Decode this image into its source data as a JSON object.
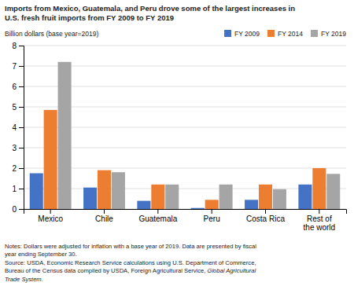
{
  "chart_data": {
    "type": "bar",
    "title": "Imports from Mexico, Guatemala, and Peru drove some of the largest increases in\nU.S. fresh fruit imports from FY 2009 to FY 2019",
    "ylabel": "Billion dollars (base year=2019)",
    "categories": [
      "Mexico",
      "Chile",
      "Guatemala",
      "Peru",
      "Costa Rica",
      "Rest of\nthe world"
    ],
    "series": [
      {
        "name": "FY 2009",
        "color": "#4472C4",
        "values": [
          1.75,
          1.05,
          0.4,
          0.05,
          0.45,
          1.2
        ]
      },
      {
        "name": "FY 2014",
        "color": "#ED7D31",
        "values": [
          4.85,
          1.9,
          1.2,
          0.45,
          1.2,
          2.0
        ]
      },
      {
        "name": "FY 2019",
        "color": "#A5A5A5",
        "values": [
          7.2,
          1.8,
          1.2,
          1.2,
          0.97,
          1.72
        ]
      }
    ],
    "ylim": [
      0,
      8
    ],
    "yticks": [
      0,
      1,
      2,
      3,
      4,
      5,
      6,
      7,
      8
    ],
    "grid": true,
    "legend": "upper right",
    "annotations": [
      "Notes: Dollars were adjusted for inflation with a base year of 2019. Data are presented by fiscal",
      "year ending September 30.",
      "Source: USDA, Economic Research Service calculations using U.S. Department of Commerce,",
      [
        "Bureau of the Census data compiled by USDA, Foreign Agricultural Service, ",
        "Global Agricultural"
      ],
      "Trade System."
    ]
  }
}
